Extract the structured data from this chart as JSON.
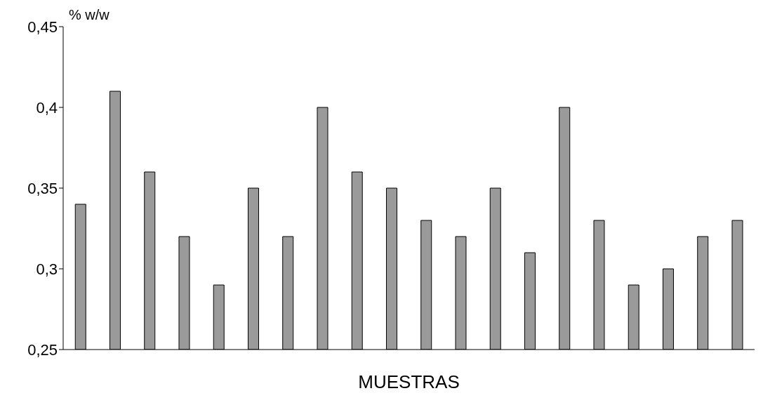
{
  "chart_data": {
    "type": "bar",
    "xlabel": "MUESTRAS",
    "ylabel": "% w/w",
    "categories": [
      null,
      null,
      null,
      null,
      null,
      null,
      null,
      null,
      null,
      null,
      null,
      null,
      null,
      null,
      null,
      null,
      null,
      null,
      null,
      null
    ],
    "values": [
      0.34,
      0.41,
      0.36,
      0.32,
      0.29,
      0.35,
      0.32,
      0.4,
      0.36,
      0.35,
      0.33,
      0.32,
      0.35,
      0.31,
      0.4,
      0.33,
      0.29,
      0.3,
      0.32,
      0.33
    ],
    "color": "#9a9a9a",
    "ylim": [
      0.25,
      0.45
    ],
    "yticks": [
      {
        "value": 0.25,
        "label": "0,25"
      },
      {
        "value": 0.3,
        "label": "0,3"
      },
      {
        "value": 0.35,
        "label": "0,35"
      },
      {
        "value": 0.4,
        "label": "0,4"
      },
      {
        "value": 0.45,
        "label": "0,45"
      }
    ],
    "grid": false
  }
}
